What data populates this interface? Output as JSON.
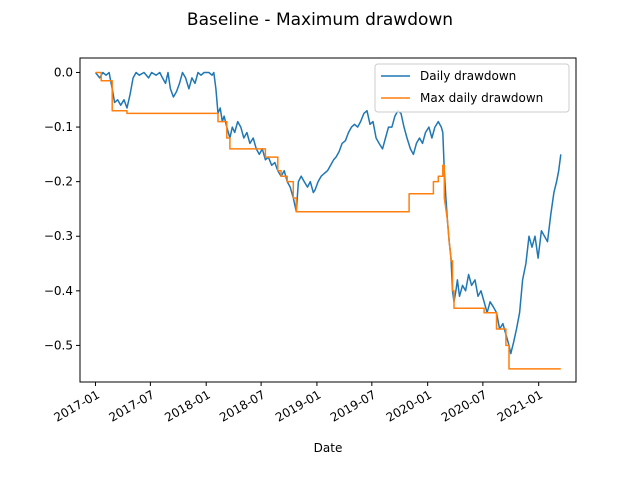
{
  "chart_data": {
    "type": "line",
    "title": "Baseline - Maximum drawdown",
    "xlabel": "Date",
    "ylabel": "",
    "xlim": [
      "2016-11-11",
      "2021-05-04"
    ],
    "ylim": [
      -0.567,
      0.0265
    ],
    "x_ticks": [
      {
        "value": "2017-01-01",
        "label": "2017-01"
      },
      {
        "value": "2017-07-01",
        "label": "2017-07"
      },
      {
        "value": "2018-01-01",
        "label": "2018-01"
      },
      {
        "value": "2018-07-01",
        "label": "2018-07"
      },
      {
        "value": "2019-01-01",
        "label": "2019-01"
      },
      {
        "value": "2019-07-01",
        "label": "2019-07"
      },
      {
        "value": "2020-01-01",
        "label": "2020-01"
      },
      {
        "value": "2020-07-01",
        "label": "2020-07"
      },
      {
        "value": "2021-01-01",
        "label": "2021-01"
      }
    ],
    "y_ticks": [
      {
        "value": 0.0,
        "label": "0.0"
      },
      {
        "value": -0.1,
        "label": "−0.1"
      },
      {
        "value": -0.2,
        "label": "−0.2"
      },
      {
        "value": -0.3,
        "label": "−0.3"
      },
      {
        "value": -0.4,
        "label": "−0.4"
      },
      {
        "value": -0.5,
        "label": "−0.5"
      }
    ],
    "grid": false,
    "legend_position": "top-right",
    "series": [
      {
        "name": "Daily drawdown",
        "color": "#1f77b4",
        "points": [
          [
            "2017-01-01",
            0.0
          ],
          [
            "2017-01-15",
            -0.01
          ],
          [
            "2017-01-25",
            0.0
          ],
          [
            "2017-02-05",
            -0.005
          ],
          [
            "2017-02-15",
            0.0
          ],
          [
            "2017-02-25",
            -0.03
          ],
          [
            "2017-03-05",
            -0.055
          ],
          [
            "2017-03-15",
            -0.05
          ],
          [
            "2017-03-25",
            -0.06
          ],
          [
            "2017-04-05",
            -0.05
          ],
          [
            "2017-04-15",
            -0.065
          ],
          [
            "2017-04-25",
            -0.04
          ],
          [
            "2017-05-05",
            -0.01
          ],
          [
            "2017-05-15",
            0.0
          ],
          [
            "2017-05-25",
            -0.005
          ],
          [
            "2017-06-10",
            0.0
          ],
          [
            "2017-06-25",
            -0.01
          ],
          [
            "2017-07-05",
            0.0
          ],
          [
            "2017-07-20",
            -0.005
          ],
          [
            "2017-08-01",
            0.0
          ],
          [
            "2017-08-10",
            -0.01
          ],
          [
            "2017-08-20",
            -0.02
          ],
          [
            "2017-08-28",
            0.0
          ],
          [
            "2017-09-05",
            -0.03
          ],
          [
            "2017-09-15",
            -0.045
          ],
          [
            "2017-09-25",
            -0.035
          ],
          [
            "2017-10-05",
            -0.02
          ],
          [
            "2017-10-15",
            0.0
          ],
          [
            "2017-10-25",
            -0.01
          ],
          [
            "2017-11-05",
            -0.03
          ],
          [
            "2017-11-15",
            -0.01
          ],
          [
            "2017-11-25",
            -0.02
          ],
          [
            "2017-12-05",
            0.0
          ],
          [
            "2017-12-15",
            -0.005
          ],
          [
            "2017-12-25",
            0.0
          ],
          [
            "2018-01-10",
            0.0
          ],
          [
            "2018-01-20",
            -0.005
          ],
          [
            "2018-01-26",
            0.0
          ],
          [
            "2018-02-02",
            -0.03
          ],
          [
            "2018-02-09",
            -0.075
          ],
          [
            "2018-02-16",
            -0.065
          ],
          [
            "2018-02-23",
            -0.09
          ],
          [
            "2018-03-01",
            -0.08
          ],
          [
            "2018-03-10",
            -0.1
          ],
          [
            "2018-03-20",
            -0.12
          ],
          [
            "2018-03-28",
            -0.1
          ],
          [
            "2018-04-05",
            -0.11
          ],
          [
            "2018-04-15",
            -0.09
          ],
          [
            "2018-04-25",
            -0.1
          ],
          [
            "2018-05-05",
            -0.12
          ],
          [
            "2018-05-15",
            -0.11
          ],
          [
            "2018-05-25",
            -0.13
          ],
          [
            "2018-06-05",
            -0.12
          ],
          [
            "2018-06-15",
            -0.14
          ],
          [
            "2018-06-25",
            -0.15
          ],
          [
            "2018-07-05",
            -0.14
          ],
          [
            "2018-07-15",
            -0.16
          ],
          [
            "2018-07-25",
            -0.155
          ],
          [
            "2018-08-05",
            -0.17
          ],
          [
            "2018-08-15",
            -0.165
          ],
          [
            "2018-08-25",
            -0.18
          ],
          [
            "2018-09-05",
            -0.19
          ],
          [
            "2018-09-15",
            -0.18
          ],
          [
            "2018-09-25",
            -0.2
          ],
          [
            "2018-10-05",
            -0.21
          ],
          [
            "2018-10-15",
            -0.23
          ],
          [
            "2018-10-25",
            -0.255
          ],
          [
            "2018-11-01",
            -0.2
          ],
          [
            "2018-11-10",
            -0.19
          ],
          [
            "2018-11-20",
            -0.2
          ],
          [
            "2018-12-01",
            -0.21
          ],
          [
            "2018-12-10",
            -0.2
          ],
          [
            "2018-12-20",
            -0.22
          ],
          [
            "2018-12-26",
            -0.215
          ],
          [
            "2019-01-05",
            -0.2
          ],
          [
            "2019-01-15",
            -0.19
          ],
          [
            "2019-01-25",
            -0.185
          ],
          [
            "2019-02-05",
            -0.18
          ],
          [
            "2019-02-15",
            -0.17
          ],
          [
            "2019-02-25",
            -0.16
          ],
          [
            "2019-03-05",
            -0.155
          ],
          [
            "2019-03-15",
            -0.145
          ],
          [
            "2019-03-25",
            -0.13
          ],
          [
            "2019-04-05",
            -0.125
          ],
          [
            "2019-04-15",
            -0.11
          ],
          [
            "2019-04-25",
            -0.1
          ],
          [
            "2019-05-05",
            -0.095
          ],
          [
            "2019-05-15",
            -0.1
          ],
          [
            "2019-05-25",
            -0.09
          ],
          [
            "2019-06-05",
            -0.075
          ],
          [
            "2019-06-15",
            -0.07
          ],
          [
            "2019-06-25",
            -0.095
          ],
          [
            "2019-07-05",
            -0.09
          ],
          [
            "2019-07-15",
            -0.12
          ],
          [
            "2019-07-25",
            -0.13
          ],
          [
            "2019-08-05",
            -0.14
          ],
          [
            "2019-08-15",
            -0.12
          ],
          [
            "2019-08-25",
            -0.1
          ],
          [
            "2019-09-05",
            -0.1
          ],
          [
            "2019-09-15",
            -0.08
          ],
          [
            "2019-09-25",
            -0.07
          ],
          [
            "2019-10-05",
            -0.075
          ],
          [
            "2019-10-15",
            -0.1
          ],
          [
            "2019-10-25",
            -0.12
          ],
          [
            "2019-11-05",
            -0.14
          ],
          [
            "2019-11-15",
            -0.15
          ],
          [
            "2019-11-25",
            -0.13
          ],
          [
            "2019-12-05",
            -0.12
          ],
          [
            "2019-12-15",
            -0.13
          ],
          [
            "2019-12-25",
            -0.11
          ],
          [
            "2020-01-05",
            -0.1
          ],
          [
            "2020-01-15",
            -0.12
          ],
          [
            "2020-01-25",
            -0.1
          ],
          [
            "2020-02-05",
            -0.09
          ],
          [
            "2020-02-15",
            -0.1
          ],
          [
            "2020-02-20",
            -0.11
          ],
          [
            "2020-02-25",
            -0.18
          ],
          [
            "2020-03-01",
            -0.23
          ],
          [
            "2020-03-06",
            -0.27
          ],
          [
            "2020-03-12",
            -0.31
          ],
          [
            "2020-03-18",
            -0.34
          ],
          [
            "2020-03-23",
            -0.4
          ],
          [
            "2020-03-28",
            -0.42
          ],
          [
            "2020-04-03",
            -0.4
          ],
          [
            "2020-04-08",
            -0.38
          ],
          [
            "2020-04-15",
            -0.41
          ],
          [
            "2020-04-25",
            -0.39
          ],
          [
            "2020-05-05",
            -0.4
          ],
          [
            "2020-05-15",
            -0.37
          ],
          [
            "2020-05-25",
            -0.39
          ],
          [
            "2020-06-05",
            -0.38
          ],
          [
            "2020-06-15",
            -0.41
          ],
          [
            "2020-06-25",
            -0.4
          ],
          [
            "2020-07-05",
            -0.42
          ],
          [
            "2020-07-15",
            -0.44
          ],
          [
            "2020-07-25",
            -0.42
          ],
          [
            "2020-08-05",
            -0.43
          ],
          [
            "2020-08-15",
            -0.44
          ],
          [
            "2020-08-25",
            -0.47
          ],
          [
            "2020-09-05",
            -0.46
          ],
          [
            "2020-09-15",
            -0.48
          ],
          [
            "2020-09-25",
            -0.5
          ],
          [
            "2020-10-01",
            -0.515
          ],
          [
            "2020-10-10",
            -0.495
          ],
          [
            "2020-10-20",
            -0.47
          ],
          [
            "2020-10-30",
            -0.44
          ],
          [
            "2020-11-09",
            -0.38
          ],
          [
            "2020-11-20",
            -0.35
          ],
          [
            "2020-11-30",
            -0.3
          ],
          [
            "2020-12-10",
            -0.32
          ],
          [
            "2020-12-20",
            -0.3
          ],
          [
            "2020-12-30",
            -0.34
          ],
          [
            "2021-01-10",
            -0.29
          ],
          [
            "2021-01-20",
            -0.3
          ],
          [
            "2021-01-30",
            -0.31
          ],
          [
            "2021-02-10",
            -0.26
          ],
          [
            "2021-02-20",
            -0.22
          ],
          [
            "2021-03-01",
            -0.2
          ],
          [
            "2021-03-08",
            -0.18
          ],
          [
            "2021-03-15",
            -0.15
          ]
        ]
      },
      {
        "name": "Max daily drawdown",
        "color": "#ff7f0e",
        "points": [
          [
            "2017-01-01",
            0.0
          ],
          [
            "2017-01-20",
            0.0
          ],
          [
            "2017-01-20",
            -0.015
          ],
          [
            "2017-02-25",
            -0.015
          ],
          [
            "2017-02-25",
            -0.07
          ],
          [
            "2017-04-15",
            -0.07
          ],
          [
            "2017-04-15",
            -0.075
          ],
          [
            "2018-02-09",
            -0.075
          ],
          [
            "2018-02-09",
            -0.09
          ],
          [
            "2018-03-10",
            -0.09
          ],
          [
            "2018-03-10",
            -0.12
          ],
          [
            "2018-03-20",
            -0.12
          ],
          [
            "2018-03-20",
            -0.14
          ],
          [
            "2018-07-15",
            -0.14
          ],
          [
            "2018-07-15",
            -0.155
          ],
          [
            "2018-08-25",
            -0.155
          ],
          [
            "2018-08-25",
            -0.18
          ],
          [
            "2018-09-05",
            -0.18
          ],
          [
            "2018-09-05",
            -0.19
          ],
          [
            "2018-09-25",
            -0.19
          ],
          [
            "2018-09-25",
            -0.2
          ],
          [
            "2018-10-15",
            -0.2
          ],
          [
            "2018-10-15",
            -0.23
          ],
          [
            "2018-10-25",
            -0.23
          ],
          [
            "2018-10-25",
            -0.255
          ],
          [
            "2019-11-01",
            -0.255
          ],
          [
            "2019-11-01",
            -0.222
          ],
          [
            "2020-01-20",
            -0.222
          ],
          [
            "2020-01-20",
            -0.2
          ],
          [
            "2020-02-05",
            -0.2
          ],
          [
            "2020-02-05",
            -0.19
          ],
          [
            "2020-02-20",
            -0.19
          ],
          [
            "2020-02-20",
            -0.17
          ],
          [
            "2020-02-25",
            -0.17
          ],
          [
            "2020-02-25",
            -0.23
          ],
          [
            "2020-03-06",
            -0.27
          ],
          [
            "2020-03-12",
            -0.31
          ],
          [
            "2020-03-18",
            -0.34
          ],
          [
            "2020-03-18",
            -0.345
          ],
          [
            "2020-03-23",
            -0.345
          ],
          [
            "2020-03-23",
            -0.4
          ],
          [
            "2020-03-28",
            -0.4
          ],
          [
            "2020-03-28",
            -0.432
          ],
          [
            "2020-07-05",
            -0.432
          ],
          [
            "2020-07-05",
            -0.44
          ],
          [
            "2020-08-15",
            -0.44
          ],
          [
            "2020-08-15",
            -0.47
          ],
          [
            "2020-09-15",
            -0.47
          ],
          [
            "2020-09-15",
            -0.5
          ],
          [
            "2020-09-25",
            -0.5
          ],
          [
            "2020-09-25",
            -0.543
          ],
          [
            "2021-03-15",
            -0.543
          ]
        ]
      }
    ]
  }
}
